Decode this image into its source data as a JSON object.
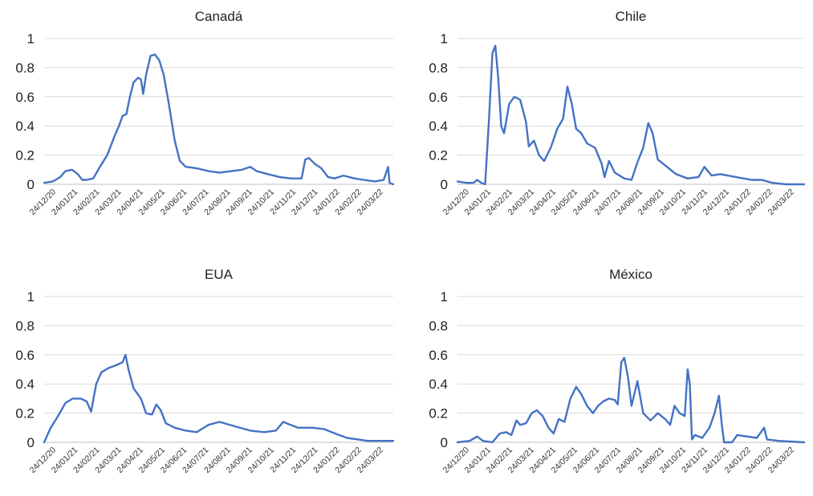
{
  "chart_data": [
    {
      "type": "line",
      "title": "Canadá",
      "ylim": [
        0,
        1
      ],
      "yticks": [
        "0",
        "0.2",
        "0.4",
        "0.6",
        "0.8",
        "1"
      ],
      "grid": true,
      "x_tick_labels": [
        "24/12/20",
        "24/01/21",
        "24/02/21",
        "24/03/21",
        "24/04/21",
        "24/05/21",
        "24/06/21",
        "24/07/21",
        "24/08/21",
        "24/09/21",
        "24/10/21",
        "24/11/21",
        "24/12/21",
        "24/01/22",
        "24/02/22",
        "24/03/22"
      ],
      "x_range": [
        "2020-12-24",
        "2022-04-14"
      ],
      "series": [
        {
          "color": "#4472c4",
          "points": [
            [
              "2020-12-24",
              0.01
            ],
            [
              "2021-01-05",
              0.02
            ],
            [
              "2021-01-15",
              0.05
            ],
            [
              "2021-01-22",
              0.09
            ],
            [
              "2021-01-31",
              0.1
            ],
            [
              "2021-02-08",
              0.07
            ],
            [
              "2021-02-14",
              0.03
            ],
            [
              "2021-02-20",
              0.03
            ],
            [
              "2021-03-01",
              0.04
            ],
            [
              "2021-03-10",
              0.12
            ],
            [
              "2021-03-20",
              0.2
            ],
            [
              "2021-03-30",
              0.33
            ],
            [
              "2021-04-05",
              0.4
            ],
            [
              "2021-04-10",
              0.47
            ],
            [
              "2021-04-15",
              0.48
            ],
            [
              "2021-04-20",
              0.6
            ],
            [
              "2021-04-25",
              0.7
            ],
            [
              "2021-05-01",
              0.73
            ],
            [
              "2021-05-05",
              0.72
            ],
            [
              "2021-05-08",
              0.62
            ],
            [
              "2021-05-12",
              0.75
            ],
            [
              "2021-05-18",
              0.88
            ],
            [
              "2021-05-24",
              0.89
            ],
            [
              "2021-05-30",
              0.85
            ],
            [
              "2021-06-05",
              0.75
            ],
            [
              "2021-06-12",
              0.55
            ],
            [
              "2021-06-20",
              0.3
            ],
            [
              "2021-06-27",
              0.16
            ],
            [
              "2021-07-05",
              0.12
            ],
            [
              "2021-07-20",
              0.11
            ],
            [
              "2021-08-05",
              0.09
            ],
            [
              "2021-08-20",
              0.08
            ],
            [
              "2021-09-05",
              0.09
            ],
            [
              "2021-09-20",
              0.1
            ],
            [
              "2021-10-01",
              0.12
            ],
            [
              "2021-10-10",
              0.09
            ],
            [
              "2021-10-25",
              0.07
            ],
            [
              "2021-11-10",
              0.05
            ],
            [
              "2021-11-25",
              0.04
            ],
            [
              "2021-12-10",
              0.04
            ],
            [
              "2021-12-15",
              0.17
            ],
            [
              "2021-12-20",
              0.18
            ],
            [
              "2021-12-28",
              0.14
            ],
            [
              "2022-01-06",
              0.11
            ],
            [
              "2022-01-15",
              0.05
            ],
            [
              "2022-01-24",
              0.04
            ],
            [
              "2022-02-05",
              0.06
            ],
            [
              "2022-02-20",
              0.04
            ],
            [
              "2022-03-05",
              0.03
            ],
            [
              "2022-03-20",
              0.02
            ],
            [
              "2022-04-01",
              0.03
            ],
            [
              "2022-04-07",
              0.12
            ],
            [
              "2022-04-09",
              0.01
            ],
            [
              "2022-04-14",
              0.0
            ]
          ]
        }
      ]
    },
    {
      "type": "line",
      "title": "Chile",
      "ylim": [
        0,
        1
      ],
      "yticks": [
        "0",
        "0.2",
        "0.4",
        "0.6",
        "0.8",
        "1"
      ],
      "grid": true,
      "x_tick_labels": [
        "24/12/20",
        "24/01/21",
        "24/02/21",
        "24/03/21",
        "24/04/21",
        "24/05/21",
        "24/06/21",
        "24/07/21",
        "24/08/21",
        "24/09/21",
        "24/10/21",
        "24/11/21",
        "24/12/21",
        "24/01/22",
        "24/02/22",
        "24/03/22"
      ],
      "x_range": [
        "2020-12-24",
        "2022-04-14"
      ],
      "series": [
        {
          "color": "#4472c4",
          "points": [
            [
              "2020-12-24",
              0.02
            ],
            [
              "2021-01-05",
              0.01
            ],
            [
              "2021-01-15",
              0.01
            ],
            [
              "2021-01-20",
              0.03
            ],
            [
              "2021-01-26",
              0.01
            ],
            [
              "2021-01-31",
              0.0
            ],
            [
              "2021-02-05",
              0.42
            ],
            [
              "2021-02-10",
              0.9
            ],
            [
              "2021-02-14",
              0.95
            ],
            [
              "2021-02-18",
              0.73
            ],
            [
              "2021-02-22",
              0.4
            ],
            [
              "2021-02-26",
              0.35
            ],
            [
              "2021-03-05",
              0.55
            ],
            [
              "2021-03-12",
              0.6
            ],
            [
              "2021-03-20",
              0.58
            ],
            [
              "2021-03-28",
              0.43
            ],
            [
              "2021-04-01",
              0.26
            ],
            [
              "2021-04-08",
              0.3
            ],
            [
              "2021-04-15",
              0.2
            ],
            [
              "2021-04-22",
              0.16
            ],
            [
              "2021-05-01",
              0.25
            ],
            [
              "2021-05-10",
              0.38
            ],
            [
              "2021-05-18",
              0.45
            ],
            [
              "2021-05-24",
              0.67
            ],
            [
              "2021-05-30",
              0.55
            ],
            [
              "2021-06-05",
              0.38
            ],
            [
              "2021-06-12",
              0.35
            ],
            [
              "2021-06-20",
              0.28
            ],
            [
              "2021-07-01",
              0.25
            ],
            [
              "2021-07-10",
              0.14
            ],
            [
              "2021-07-14",
              0.05
            ],
            [
              "2021-07-20",
              0.16
            ],
            [
              "2021-07-28",
              0.08
            ],
            [
              "2021-08-10",
              0.04
            ],
            [
              "2021-08-20",
              0.03
            ],
            [
              "2021-08-28",
              0.15
            ],
            [
              "2021-09-05",
              0.25
            ],
            [
              "2021-09-12",
              0.42
            ],
            [
              "2021-09-18",
              0.35
            ],
            [
              "2021-09-25",
              0.17
            ],
            [
              "2021-10-05",
              0.13
            ],
            [
              "2021-10-20",
              0.07
            ],
            [
              "2021-11-05",
              0.04
            ],
            [
              "2021-11-20",
              0.05
            ],
            [
              "2021-11-28",
              0.12
            ],
            [
              "2021-12-08",
              0.06
            ],
            [
              "2021-12-20",
              0.07
            ],
            [
              "2022-01-10",
              0.05
            ],
            [
              "2022-02-01",
              0.03
            ],
            [
              "2022-02-15",
              0.03
            ],
            [
              "2022-03-01",
              0.01
            ],
            [
              "2022-03-20",
              0.0
            ],
            [
              "2022-04-14",
              0.0
            ]
          ]
        }
      ]
    },
    {
      "type": "line",
      "title": "EUA",
      "ylim": [
        0,
        1
      ],
      "yticks": [
        "0",
        "0.2",
        "0.4",
        "0.6",
        "0.8",
        "1"
      ],
      "grid": true,
      "x_tick_labels": [
        "24/12/20",
        "24/01/21",
        "24/02/21",
        "24/03/21",
        "24/04/21",
        "24/05/21",
        "24/06/21",
        "24/07/21",
        "24/08/21",
        "24/09/21",
        "24/10/21",
        "24/11/21",
        "24/12/21",
        "24/01/22",
        "24/02/22",
        "24/03/22"
      ],
      "x_range": [
        "2020-12-24",
        "2022-04-14"
      ],
      "series": [
        {
          "color": "#4472c4",
          "points": [
            [
              "2020-12-24",
              0.0
            ],
            [
              "2021-01-02",
              0.1
            ],
            [
              "2021-01-12",
              0.18
            ],
            [
              "2021-01-22",
              0.27
            ],
            [
              "2021-02-01",
              0.3
            ],
            [
              "2021-02-12",
              0.3
            ],
            [
              "2021-02-20",
              0.28
            ],
            [
              "2021-02-26",
              0.21
            ],
            [
              "2021-03-05",
              0.4
            ],
            [
              "2021-03-12",
              0.48
            ],
            [
              "2021-03-22",
              0.51
            ],
            [
              "2021-04-02",
              0.53
            ],
            [
              "2021-04-10",
              0.55
            ],
            [
              "2021-04-14",
              0.6
            ],
            [
              "2021-04-18",
              0.5
            ],
            [
              "2021-04-25",
              0.37
            ],
            [
              "2021-05-05",
              0.3
            ],
            [
              "2021-05-12",
              0.2
            ],
            [
              "2021-05-20",
              0.19
            ],
            [
              "2021-05-26",
              0.26
            ],
            [
              "2021-06-01",
              0.22
            ],
            [
              "2021-06-08",
              0.13
            ],
            [
              "2021-06-20",
              0.1
            ],
            [
              "2021-07-05",
              0.08
            ],
            [
              "2021-07-20",
              0.07
            ],
            [
              "2021-08-05",
              0.12
            ],
            [
              "2021-08-20",
              0.14
            ],
            [
              "2021-09-10",
              0.11
            ],
            [
              "2021-10-01",
              0.08
            ],
            [
              "2021-10-20",
              0.07
            ],
            [
              "2021-11-05",
              0.08
            ],
            [
              "2021-11-15",
              0.14
            ],
            [
              "2021-11-25",
              0.12
            ],
            [
              "2021-12-05",
              0.1
            ],
            [
              "2021-12-25",
              0.1
            ],
            [
              "2022-01-10",
              0.09
            ],
            [
              "2022-01-25",
              0.06
            ],
            [
              "2022-02-10",
              0.03
            ],
            [
              "2022-02-25",
              0.02
            ],
            [
              "2022-03-10",
              0.01
            ],
            [
              "2022-04-14",
              0.01
            ]
          ]
        }
      ]
    },
    {
      "type": "line",
      "title": "México",
      "ylim": [
        0,
        1
      ],
      "yticks": [
        "0",
        "0.2",
        "0.4",
        "0.6",
        "0.8",
        "1"
      ],
      "grid": true,
      "x_tick_labels": [
        "24/12/20",
        "24/01/21",
        "24/02/21",
        "24/03/21",
        "24/04/21",
        "24/05/21",
        "24/06/21",
        "24/07/21",
        "24/08/21",
        "24/09/21",
        "24/10/21",
        "24/11/21",
        "24/12/21",
        "24/01/22",
        "24/02/22",
        "24/03/22"
      ],
      "x_range": [
        "2020-12-24",
        "2022-04-14"
      ],
      "series": [
        {
          "color": "#4472c4",
          "points": [
            [
              "2020-12-24",
              0.0
            ],
            [
              "2021-01-10",
              0.01
            ],
            [
              "2021-01-20",
              0.04
            ],
            [
              "2021-01-28",
              0.01
            ],
            [
              "2021-02-10",
              0.0
            ],
            [
              "2021-02-20",
              0.06
            ],
            [
              "2021-03-01",
              0.07
            ],
            [
              "2021-03-08",
              0.05
            ],
            [
              "2021-03-15",
              0.15
            ],
            [
              "2021-03-20",
              0.12
            ],
            [
              "2021-03-28",
              0.13
            ],
            [
              "2021-04-05",
              0.2
            ],
            [
              "2021-04-12",
              0.22
            ],
            [
              "2021-04-20",
              0.18
            ],
            [
              "2021-04-28",
              0.1
            ],
            [
              "2021-05-05",
              0.06
            ],
            [
              "2021-05-12",
              0.16
            ],
            [
              "2021-05-20",
              0.14
            ],
            [
              "2021-05-28",
              0.3
            ],
            [
              "2021-06-05",
              0.38
            ],
            [
              "2021-06-12",
              0.33
            ],
            [
              "2021-06-20",
              0.25
            ],
            [
              "2021-06-28",
              0.2
            ],
            [
              "2021-07-05",
              0.25
            ],
            [
              "2021-07-12",
              0.28
            ],
            [
              "2021-07-20",
              0.3
            ],
            [
              "2021-07-28",
              0.29
            ],
            [
              "2021-08-01",
              0.26
            ],
            [
              "2021-08-06",
              0.55
            ],
            [
              "2021-08-10",
              0.58
            ],
            [
              "2021-08-15",
              0.45
            ],
            [
              "2021-08-20",
              0.25
            ],
            [
              "2021-08-28",
              0.42
            ],
            [
              "2021-09-05",
              0.2
            ],
            [
              "2021-09-15",
              0.15
            ],
            [
              "2021-09-25",
              0.2
            ],
            [
              "2021-10-05",
              0.16
            ],
            [
              "2021-10-12",
              0.12
            ],
            [
              "2021-10-18",
              0.25
            ],
            [
              "2021-10-25",
              0.2
            ],
            [
              "2021-11-01",
              0.18
            ],
            [
              "2021-11-05",
              0.5
            ],
            [
              "2021-11-08",
              0.4
            ],
            [
              "2021-11-11",
              0.02
            ],
            [
              "2021-11-15",
              0.05
            ],
            [
              "2021-11-25",
              0.03
            ],
            [
              "2021-12-05",
              0.1
            ],
            [
              "2021-12-12",
              0.2
            ],
            [
              "2021-12-18",
              0.32
            ],
            [
              "2021-12-22",
              0.12
            ],
            [
              "2021-12-25",
              0.0
            ],
            [
              "2022-01-05",
              0.0
            ],
            [
              "2022-01-12",
              0.05
            ],
            [
              "2022-01-25",
              0.04
            ],
            [
              "2022-02-08",
              0.03
            ],
            [
              "2022-02-18",
              0.1
            ],
            [
              "2022-02-22",
              0.02
            ],
            [
              "2022-03-10",
              0.01
            ],
            [
              "2022-04-14",
              0.0
            ]
          ]
        }
      ]
    }
  ]
}
